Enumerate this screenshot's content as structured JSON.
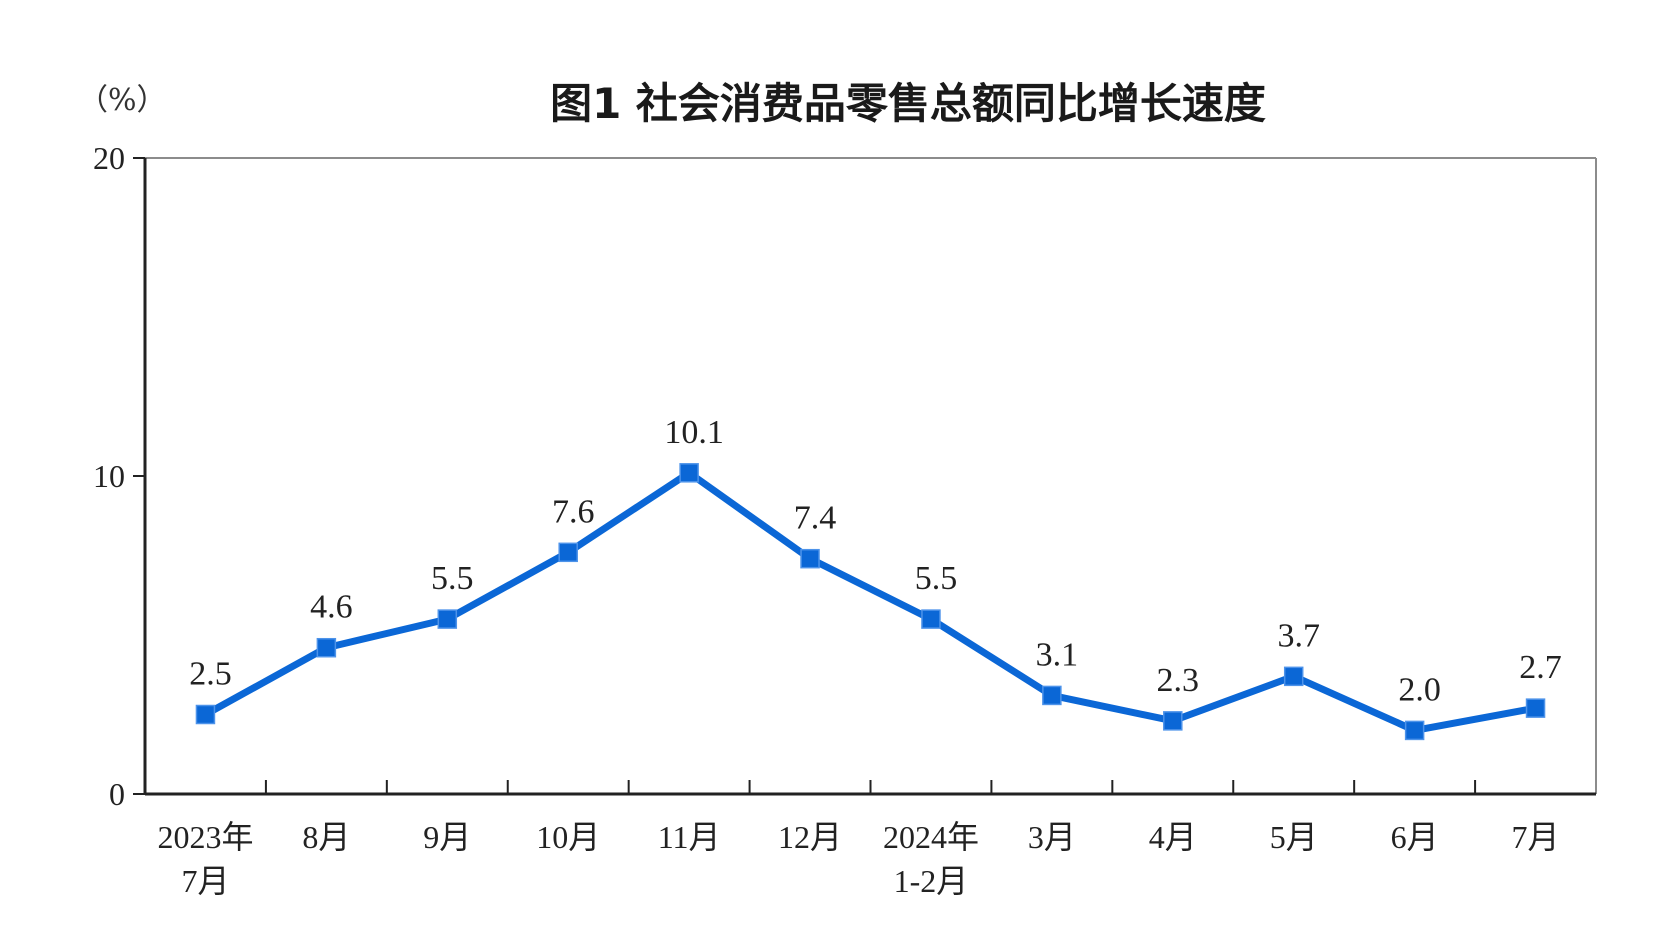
{
  "chart_data": {
    "type": "line",
    "title": "图1  社会消费品零售总额同比增长速度",
    "unit_label": "（%）",
    "ylabel": "",
    "xlabel": "",
    "ylim": [
      0,
      20
    ],
    "y_ticks": [
      "0",
      "10",
      "20"
    ],
    "categories": [
      [
        "2023年",
        "7月"
      ],
      [
        "8月"
      ],
      [
        "9月"
      ],
      [
        "10月"
      ],
      [
        "11月"
      ],
      [
        "12月"
      ],
      [
        "2024年",
        "1-2月"
      ],
      [
        "3月"
      ],
      [
        "4月"
      ],
      [
        "5月"
      ],
      [
        "6月"
      ],
      [
        "7月"
      ]
    ],
    "series": [
      {
        "values": [
          2.5,
          4.6,
          5.5,
          7.6,
          10.1,
          7.4,
          5.5,
          3.1,
          2.3,
          3.7,
          2.0,
          2.7
        ],
        "labels": [
          "2.5",
          "4.6",
          "5.5",
          "7.6",
          "10.1",
          "7.4",
          "5.5",
          "3.1",
          "2.3",
          "3.7",
          "2.0",
          "2.7"
        ],
        "color": "#0b67d6"
      }
    ],
    "grid": false,
    "legend": "none"
  }
}
